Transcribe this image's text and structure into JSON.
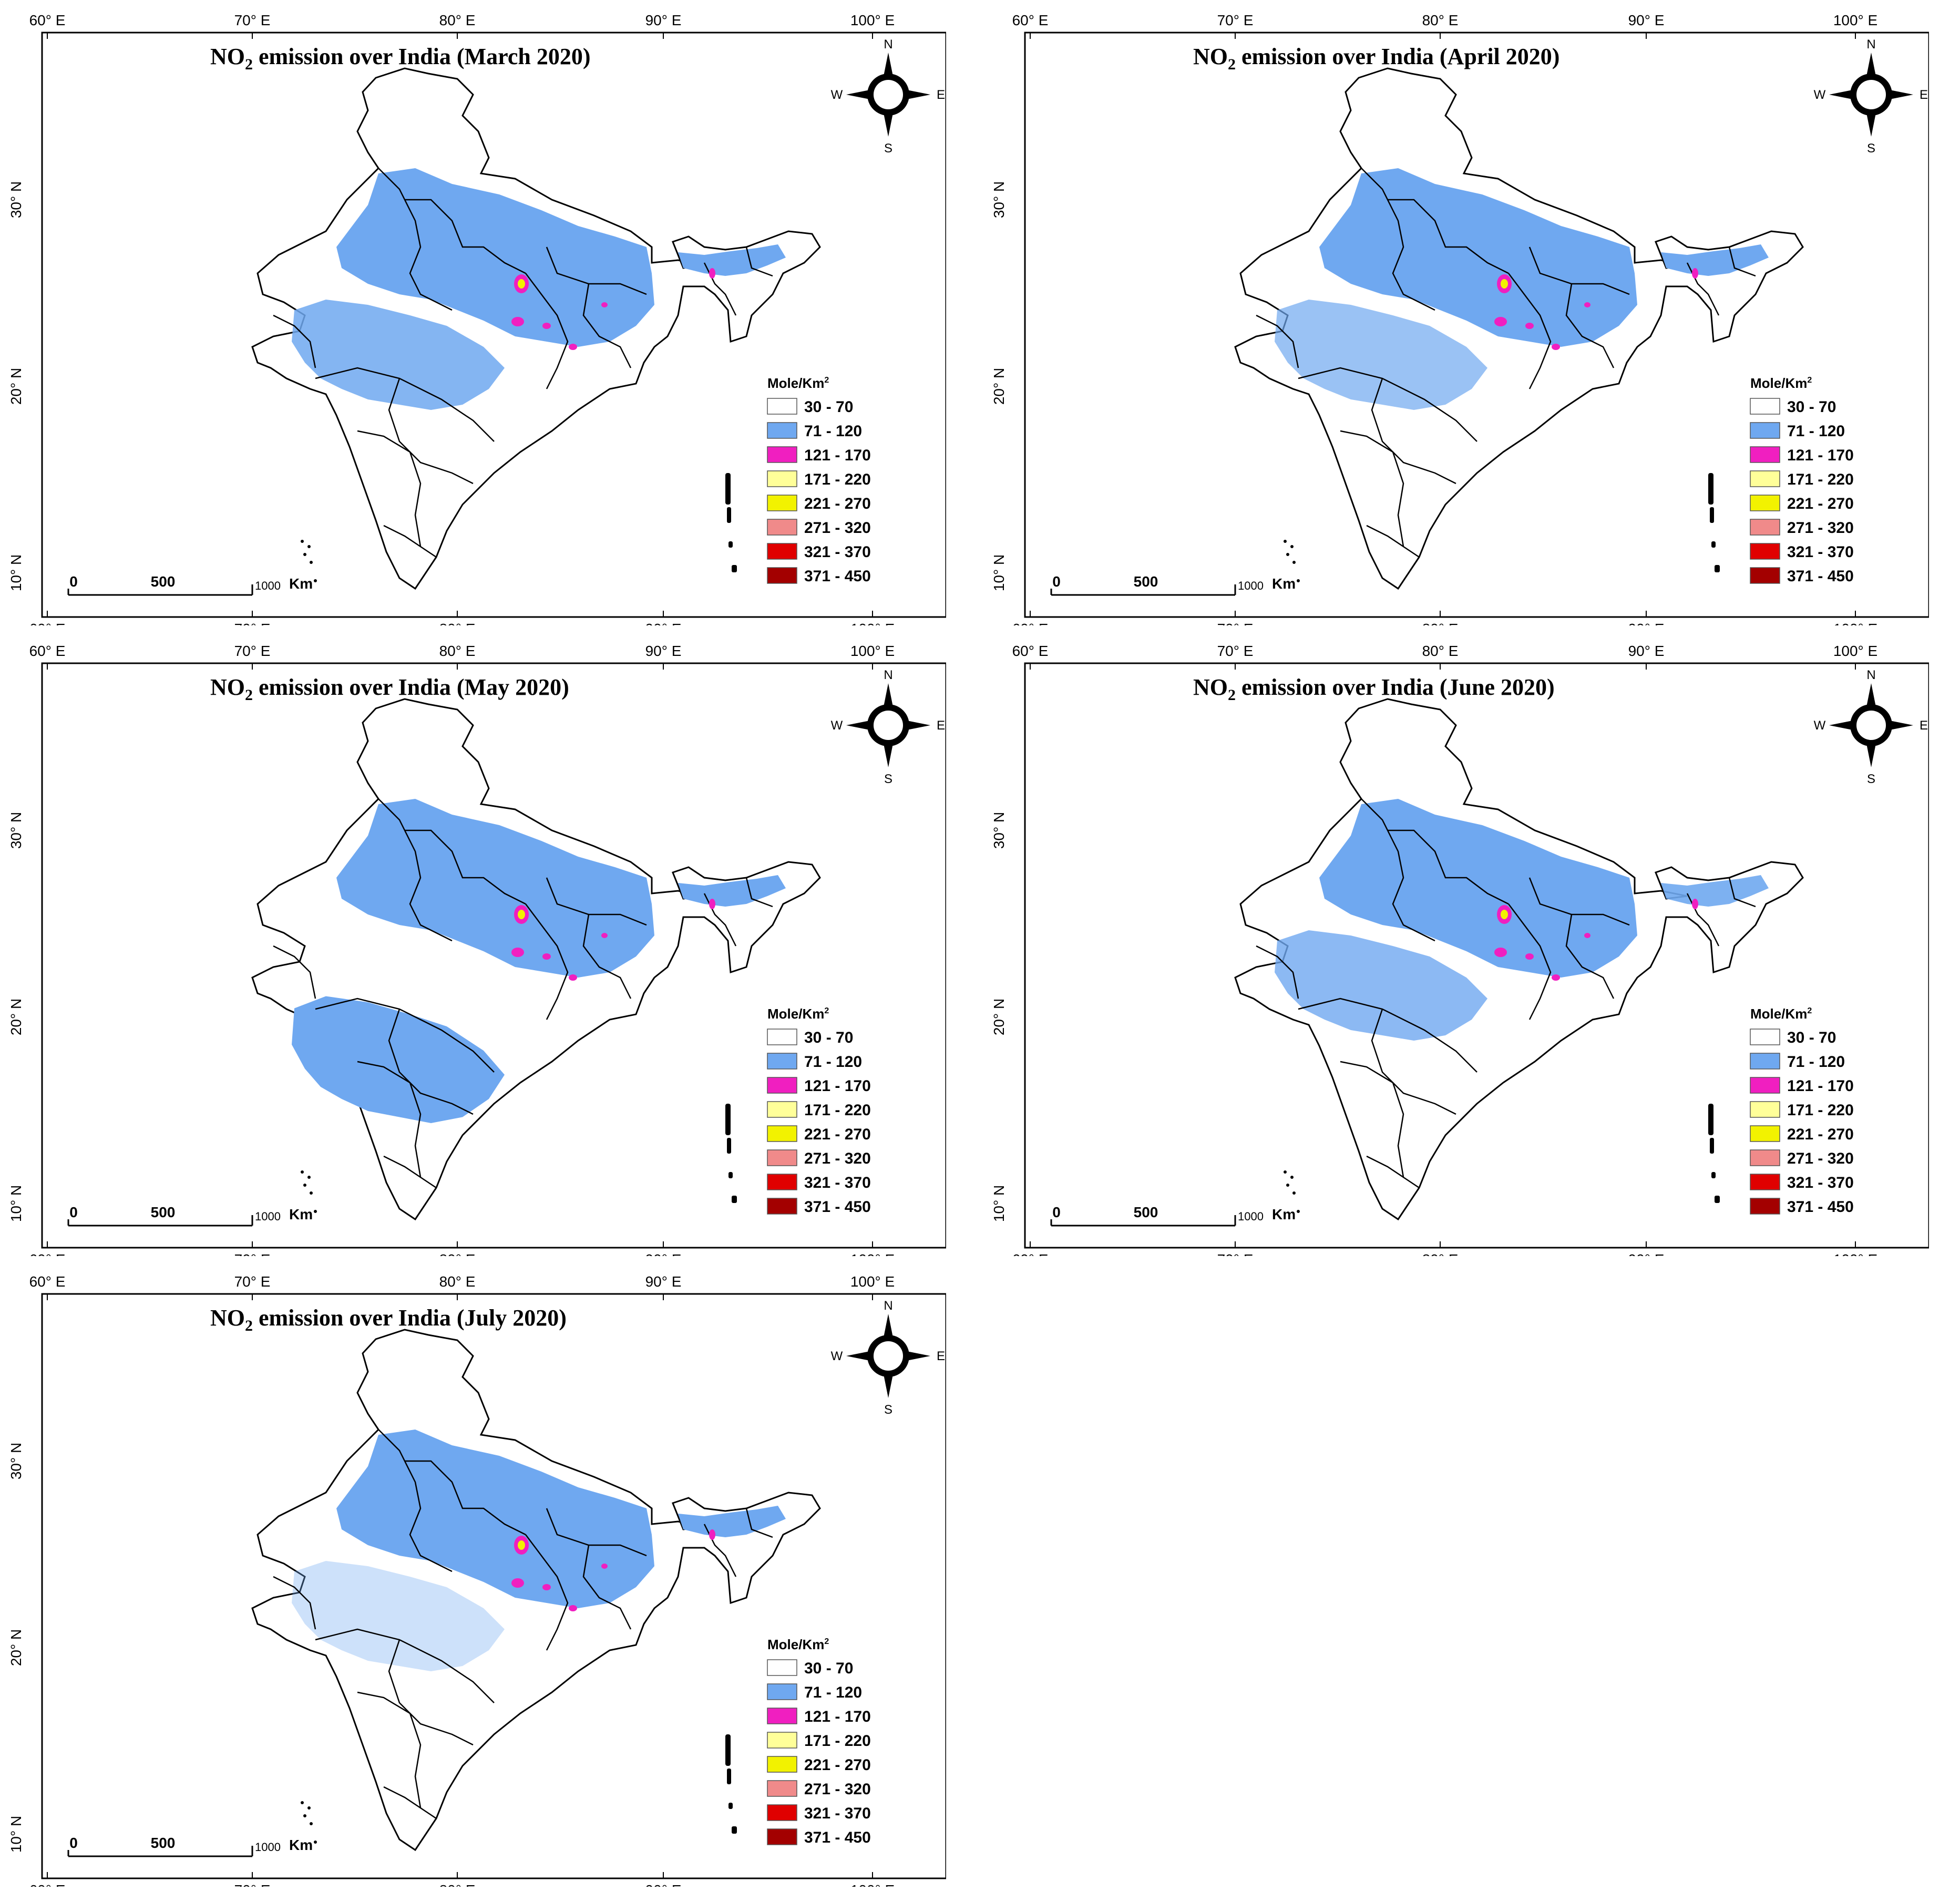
{
  "figure": {
    "panels": [
      {
        "id": "march",
        "title_prefix": "NO",
        "title_sub": "2",
        "title_rest": " emission over India  (March 2020)"
      },
      {
        "id": "april",
        "title_prefix": "NO",
        "title_sub": "2",
        "title_rest": "  emission over India  (April 2020)"
      },
      {
        "id": "may",
        "title_prefix": "NO",
        "title_sub": "2",
        "title_rest": "  emission over India  (May 2020)"
      },
      {
        "id": "june",
        "title_prefix": "NO",
        "title_sub": "2",
        "title_rest": "  emission over India  (June 2020)"
      },
      {
        "id": "july",
        "title_prefix": "NO",
        "title_sub": "2",
        "title_rest": "   emission over India  (July 2020)"
      }
    ],
    "axes": {
      "lon_labels": [
        "60° E",
        "70° E",
        "80° E",
        "90° E",
        "100° E"
      ],
      "lat_labels": [
        "30° N",
        "20° N",
        "10° N"
      ]
    },
    "legend": {
      "title": "Mole/Km",
      "title_sup": "2",
      "classes": [
        {
          "label": "30 - 70",
          "color": "#ffffff"
        },
        {
          "label": "71 - 120",
          "color": "#6fa8f0"
        },
        {
          "label": "121 - 170",
          "color": "#f01fc0"
        },
        {
          "label": "171 - 220",
          "color": "#ffff99"
        },
        {
          "label": "221 - 270",
          "color": "#f2f200"
        },
        {
          "label": "271 - 320",
          "color": "#f08a8a"
        },
        {
          "label": "321 - 370",
          "color": "#e00000"
        },
        {
          "label": "371 - 450",
          "color": "#a30000"
        }
      ]
    },
    "scale_bar": {
      "zero": "0",
      "mid": "500",
      "end": "1000",
      "unit": "Km"
    },
    "compass": {
      "n": "N",
      "s": "S",
      "e": "E",
      "w": "W"
    },
    "colors": {
      "blue": "#6fa8f0",
      "hotspot_magenta": "#f01fc0",
      "hotspot_yellow": "#f2f200",
      "border": "#000000"
    }
  }
}
